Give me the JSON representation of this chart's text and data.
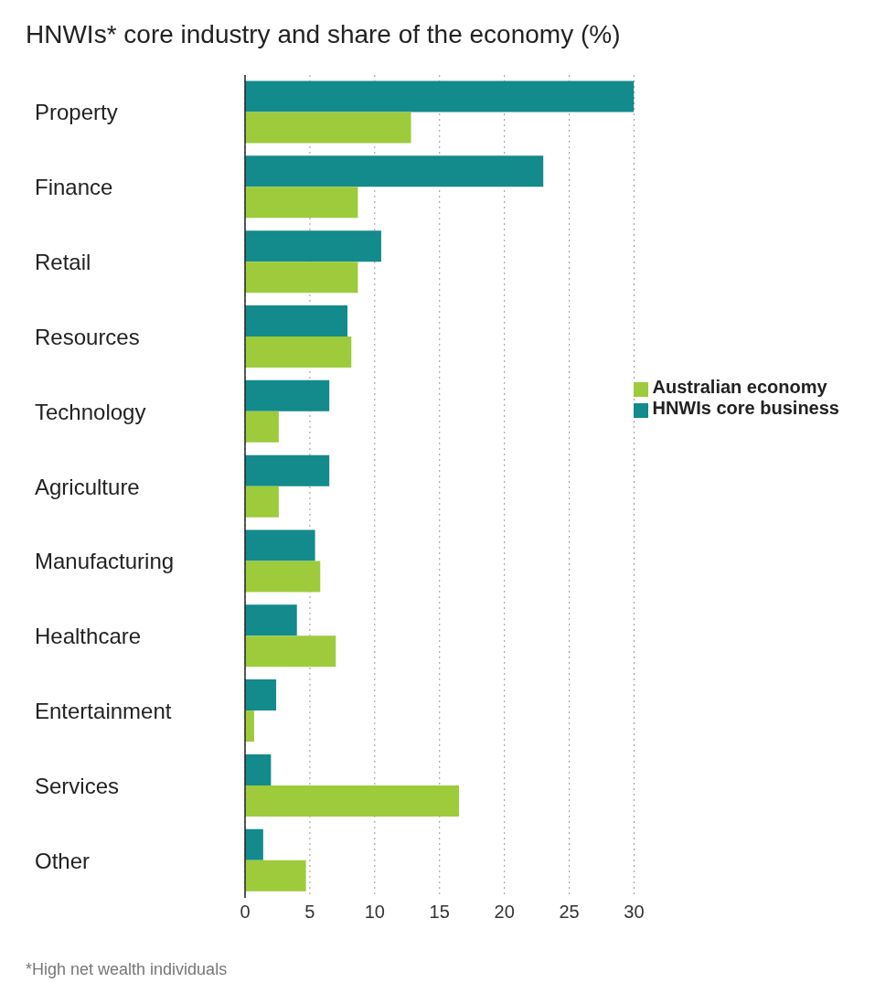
{
  "chart_data": {
    "type": "bar",
    "orientation": "horizontal",
    "title": "HNWIs* core industry and share of the economy (%)",
    "categories": [
      "Property",
      "Finance",
      "Retail",
      "Resources",
      "Technology",
      "Agriculture",
      "Manufacturing",
      "Healthcare",
      "Entertainment",
      "Services",
      "Other"
    ],
    "series": [
      {
        "name": "HNWIs core business",
        "color": "#138a8c",
        "values": [
          30,
          23,
          10.5,
          7.9,
          6.5,
          6.5,
          5.4,
          4,
          2.4,
          2,
          1.4
        ]
      },
      {
        "name": "Australian economy",
        "color": "#9dcb3c",
        "values": [
          12.8,
          8.7,
          8.7,
          8.2,
          2.6,
          2.6,
          5.8,
          7,
          0.7,
          16.5,
          4.7
        ]
      }
    ],
    "xlim": [
      0,
      30
    ],
    "xticks": [
      0,
      5,
      10,
      15,
      20,
      25,
      30
    ],
    "grid": "x",
    "legend": "top right",
    "annotations": [
      "*High net wealth individuals"
    ]
  }
}
